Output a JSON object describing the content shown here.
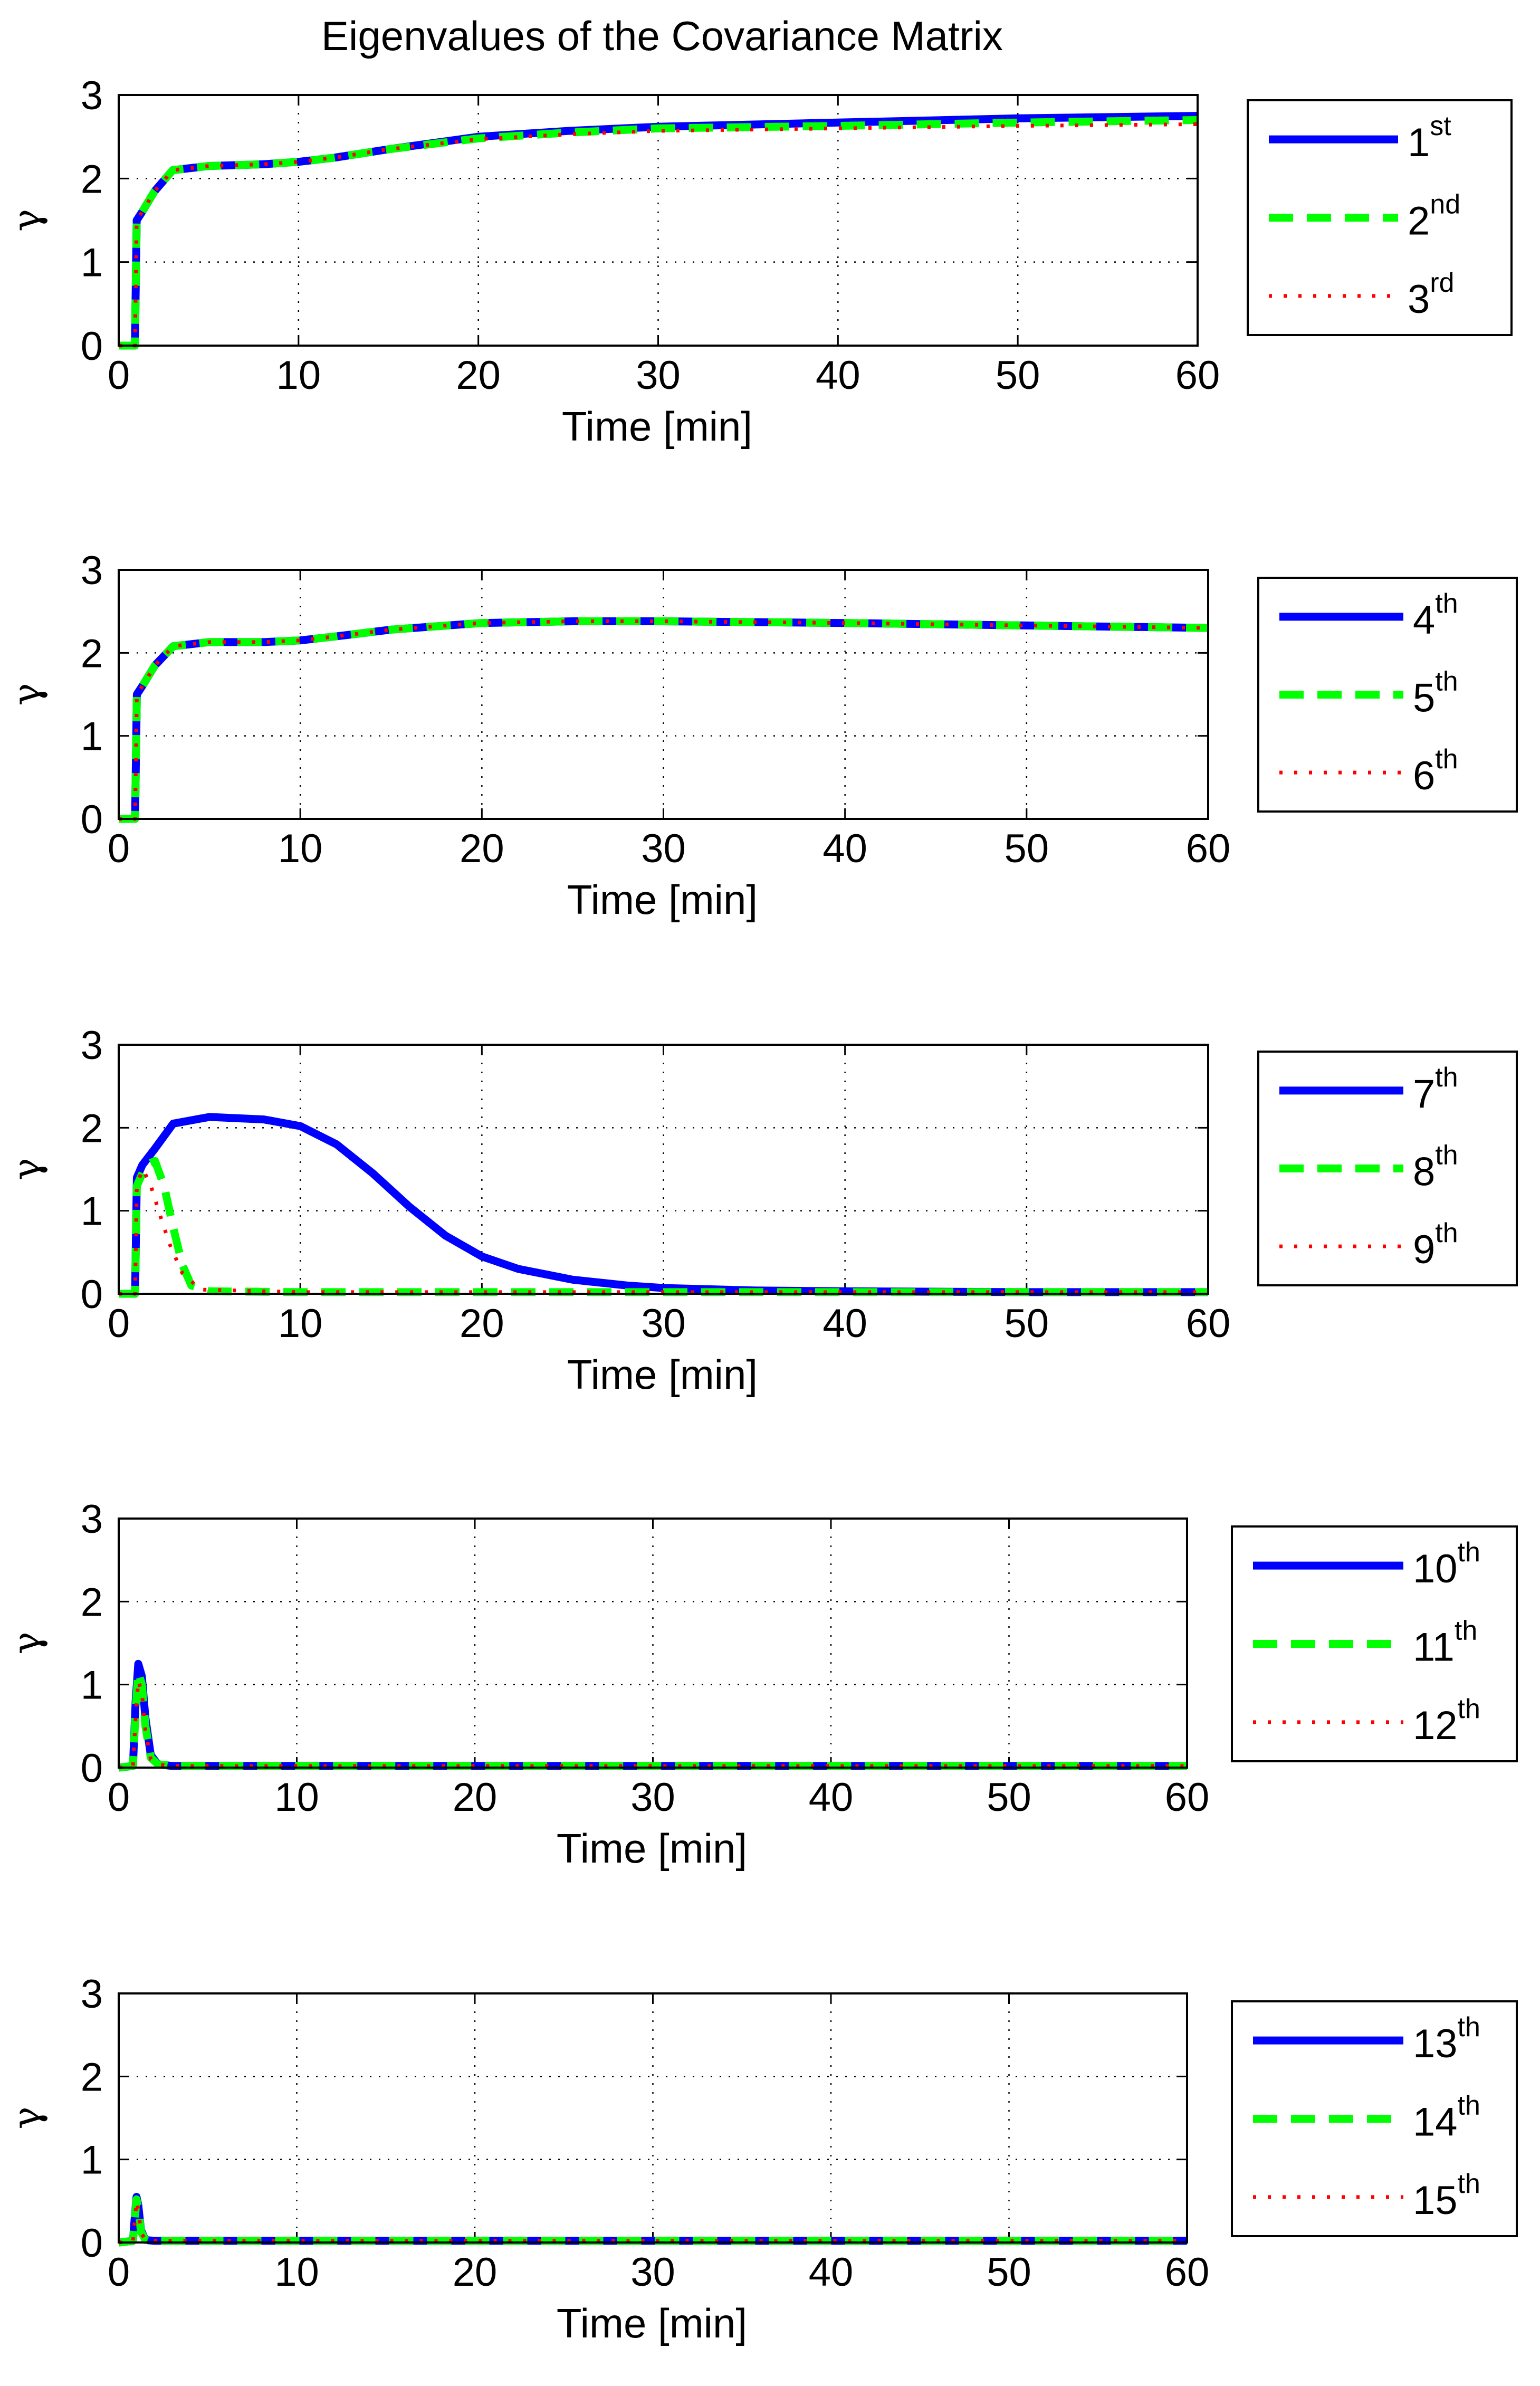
{
  "figure_title": "Eigenvalues of the Covariance Matrix",
  "colors": {
    "series1": "#0000ff",
    "series2": "#00ff00",
    "series3": "#ff0000"
  },
  "chart_data": [
    {
      "type": "line",
      "xlabel": "Time [min]",
      "ylabel": "γ",
      "xlim": [
        0,
        60
      ],
      "ylim": [
        0,
        3
      ],
      "xticks": [
        "0",
        "10",
        "20",
        "30",
        "40",
        "50",
        "60"
      ],
      "yticks": [
        "0",
        "1",
        "2",
        "3"
      ],
      "grid": true,
      "legend_position": "right",
      "series": [
        {
          "name": "1st",
          "legend_base": "1",
          "legend_sup": "st",
          "style": "solid",
          "x": [
            0,
            0.9,
            1,
            1.3,
            2,
            3,
            5,
            8,
            10,
            12,
            15,
            20,
            25,
            30,
            40,
            50,
            60
          ],
          "y": [
            0,
            0,
            1.5,
            1.6,
            1.85,
            2.1,
            2.15,
            2.17,
            2.2,
            2.25,
            2.35,
            2.5,
            2.57,
            2.62,
            2.67,
            2.72,
            2.75
          ]
        },
        {
          "name": "2nd",
          "legend_base": "2",
          "legend_sup": "nd",
          "style": "dashed",
          "x": [
            0,
            0.9,
            1,
            1.3,
            2,
            3,
            5,
            8,
            10,
            12,
            15,
            20,
            25,
            30,
            40,
            50,
            60
          ],
          "y": [
            0,
            0,
            1.5,
            1.6,
            1.85,
            2.1,
            2.15,
            2.17,
            2.2,
            2.25,
            2.35,
            2.48,
            2.55,
            2.6,
            2.63,
            2.67,
            2.7
          ]
        },
        {
          "name": "3rd",
          "legend_base": "3",
          "legend_sup": "rd",
          "style": "dotted",
          "x": [
            0,
            0.9,
            1,
            1.3,
            2,
            3,
            5,
            8,
            10,
            12,
            15,
            20,
            25,
            30,
            40,
            50,
            60
          ],
          "y": [
            0,
            0,
            1.5,
            1.6,
            1.85,
            2.1,
            2.15,
            2.17,
            2.2,
            2.25,
            2.35,
            2.47,
            2.53,
            2.57,
            2.6,
            2.63,
            2.65
          ]
        }
      ]
    },
    {
      "type": "line",
      "xlabel": "Time [min]",
      "ylabel": "γ",
      "xlim": [
        0,
        60
      ],
      "ylim": [
        0,
        3
      ],
      "xticks": [
        "0",
        "10",
        "20",
        "30",
        "40",
        "50",
        "60"
      ],
      "yticks": [
        "0",
        "1",
        "2",
        "3"
      ],
      "grid": true,
      "legend_position": "right",
      "series": [
        {
          "name": "4th",
          "legend_base": "4",
          "legend_sup": "th",
          "style": "solid",
          "x": [
            0,
            0.9,
            1,
            1.3,
            2,
            3,
            5,
            8,
            10,
            12,
            15,
            20,
            25,
            30,
            40,
            50,
            60
          ],
          "y": [
            0,
            0,
            1.5,
            1.6,
            1.85,
            2.08,
            2.13,
            2.13,
            2.15,
            2.2,
            2.28,
            2.36,
            2.38,
            2.38,
            2.36,
            2.33,
            2.3
          ]
        },
        {
          "name": "5th",
          "legend_base": "5",
          "legend_sup": "th",
          "style": "dashed",
          "x": [
            0,
            0.9,
            1,
            1.3,
            2,
            3,
            5,
            8,
            10,
            12,
            15,
            20,
            25,
            30,
            40,
            50,
            60
          ],
          "y": [
            0,
            0,
            1.5,
            1.6,
            1.85,
            2.08,
            2.13,
            2.13,
            2.15,
            2.2,
            2.28,
            2.36,
            2.38,
            2.38,
            2.36,
            2.33,
            2.3
          ]
        },
        {
          "name": "6th",
          "legend_base": "6",
          "legend_sup": "th",
          "style": "dotted",
          "x": [
            0,
            0.9,
            1,
            1.3,
            2,
            3,
            5,
            8,
            10,
            12,
            15,
            20,
            25,
            30,
            40,
            50,
            60
          ],
          "y": [
            0,
            0,
            1.5,
            1.6,
            1.85,
            2.08,
            2.13,
            2.13,
            2.15,
            2.2,
            2.28,
            2.36,
            2.38,
            2.38,
            2.36,
            2.33,
            2.3
          ]
        }
      ]
    },
    {
      "type": "line",
      "xlabel": "Time [min]",
      "ylabel": "γ",
      "xlim": [
        0,
        60
      ],
      "ylim": [
        0,
        3
      ],
      "xticks": [
        "0",
        "10",
        "20",
        "30",
        "40",
        "50",
        "60"
      ],
      "yticks": [
        "0",
        "1",
        "2",
        "3"
      ],
      "grid": true,
      "legend_position": "right",
      "series": [
        {
          "name": "7th",
          "legend_base": "7",
          "legend_sup": "th",
          "style": "solid",
          "x": [
            0,
            0.9,
            1,
            1.3,
            2,
            3,
            5,
            8,
            10,
            12,
            14,
            16,
            18,
            20,
            22,
            25,
            28,
            30,
            35,
            40,
            50,
            60
          ],
          "y": [
            0,
            0,
            1.4,
            1.55,
            1.75,
            2.05,
            2.13,
            2.1,
            2.02,
            1.8,
            1.45,
            1.05,
            0.7,
            0.45,
            0.3,
            0.17,
            0.1,
            0.07,
            0.04,
            0.03,
            0.02,
            0.02
          ]
        },
        {
          "name": "8th",
          "legend_base": "8",
          "legend_sup": "th",
          "style": "dashed",
          "x": [
            0,
            0.9,
            1,
            1.5,
            2,
            2.5,
            3,
            3.5,
            4,
            5,
            10,
            20,
            30,
            40,
            50,
            60
          ],
          "y": [
            0,
            0,
            1.3,
            1.55,
            1.6,
            1.3,
            0.8,
            0.35,
            0.1,
            0.03,
            0.02,
            0.02,
            0.02,
            0.02,
            0.02,
            0.02
          ]
        },
        {
          "name": "9th",
          "legend_base": "9",
          "legend_sup": "th",
          "style": "dotted",
          "x": [
            0,
            0.9,
            1,
            1.3,
            1.7,
            2.2,
            2.8,
            3.5,
            4.5,
            10,
            20,
            30,
            40,
            50,
            60
          ],
          "y": [
            0,
            0,
            1.3,
            1.5,
            1.35,
            1.0,
            0.6,
            0.25,
            0.05,
            0.02,
            0.02,
            0.02,
            0.02,
            0.02,
            0.02
          ]
        }
      ]
    },
    {
      "type": "line",
      "xlabel": "Time [min]",
      "ylabel": "γ",
      "xlim": [
        0,
        60
      ],
      "ylim": [
        0,
        3
      ],
      "xticks": [
        "0",
        "10",
        "20",
        "30",
        "40",
        "50",
        "60"
      ],
      "yticks": [
        "0",
        "1",
        "2",
        "3"
      ],
      "grid": true,
      "legend_position": "right",
      "series": [
        {
          "name": "10th",
          "legend_base": "10",
          "legend_sup": "th",
          "style": "solid",
          "x": [
            0,
            0.8,
            0.95,
            1.1,
            1.3,
            1.5,
            1.8,
            2.2,
            3,
            60
          ],
          "y": [
            0,
            0.02,
            0.8,
            1.25,
            1.1,
            0.6,
            0.15,
            0.04,
            0.02,
            0.02
          ]
        },
        {
          "name": "11th",
          "legend_base": "11",
          "legend_sup": "th",
          "style": "dashed",
          "x": [
            0,
            0.8,
            0.95,
            1.1,
            1.3,
            1.5,
            1.8,
            2.2,
            3,
            60
          ],
          "y": [
            0,
            0.02,
            0.7,
            1.15,
            1.0,
            0.5,
            0.12,
            0.04,
            0.02,
            0.02
          ]
        },
        {
          "name": "12th",
          "legend_base": "12",
          "legend_sup": "th",
          "style": "dotted",
          "x": [
            0,
            0.8,
            0.95,
            1.1,
            1.3,
            1.5,
            1.8,
            2.2,
            3,
            60
          ],
          "y": [
            0,
            0.02,
            0.6,
            1.05,
            0.9,
            0.45,
            0.1,
            0.04,
            0.02,
            0.02
          ]
        }
      ]
    },
    {
      "type": "line",
      "xlabel": "Time [min]",
      "ylabel": "γ",
      "xlim": [
        0,
        60
      ],
      "ylim": [
        0,
        3
      ],
      "xticks": [
        "0",
        "10",
        "20",
        "30",
        "40",
        "50",
        "60"
      ],
      "yticks": [
        "0",
        "1",
        "2",
        "3"
      ],
      "grid": true,
      "legend_position": "right",
      "series": [
        {
          "name": "13th",
          "legend_base": "13",
          "legend_sup": "th",
          "style": "solid",
          "x": [
            0,
            0.8,
            0.9,
            1.0,
            1.1,
            1.25,
            1.5,
            2,
            60
          ],
          "y": [
            0,
            0.02,
            0.3,
            0.55,
            0.45,
            0.15,
            0.03,
            0.02,
            0.02
          ]
        },
        {
          "name": "14th",
          "legend_base": "14",
          "legend_sup": "th",
          "style": "dashed",
          "x": [
            0,
            0.8,
            0.9,
            1.0,
            1.1,
            1.25,
            1.5,
            2,
            60
          ],
          "y": [
            0,
            0.02,
            0.28,
            0.52,
            0.42,
            0.13,
            0.03,
            0.02,
            0.02
          ]
        },
        {
          "name": "15th",
          "legend_base": "15",
          "legend_sup": "th",
          "style": "dotted",
          "x": [
            0,
            0.8,
            0.9,
            1.0,
            1.1,
            1.25,
            1.5,
            2,
            60
          ],
          "y": [
            0,
            0.02,
            0.25,
            0.5,
            0.4,
            0.12,
            0.03,
            0.02,
            0.02
          ]
        }
      ]
    }
  ]
}
